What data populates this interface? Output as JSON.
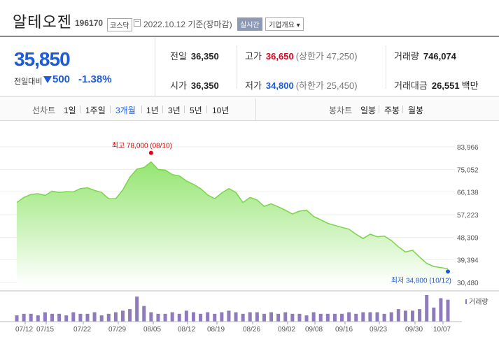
{
  "header": {
    "name": "알테오젠",
    "code": "196170",
    "market": "코스닥",
    "date": "2022.10.12  기준(장마감)",
    "realtime_label": "실시간",
    "company_label": "기업개요 ▾"
  },
  "summary": {
    "price": "35,850",
    "prev_label": "전일대비",
    "change": "500",
    "change_pct": "-1.38%",
    "prev_close_label": "전일",
    "prev_close": "36,350",
    "open_label": "시가",
    "open": "36,350",
    "high_label": "고가",
    "high": "36,650",
    "upper_limit": "(상한가 47,250)",
    "low_label": "저가",
    "low": "34,800",
    "lower_limit": "(하한가 25,450)",
    "volume_label": "거래량",
    "volume": "746,074",
    "amount_label": "거래대금",
    "amount": "26,551",
    "amount_unit": "백만"
  },
  "tabs": {
    "line_label": "선차트",
    "line": [
      "1일",
      "1주일",
      "3개월",
      "1년",
      "3년",
      "5년",
      "10년"
    ],
    "line_selected": 2,
    "candle_label": "봉차트",
    "candle": [
      "일봉",
      "주봉",
      "월봉"
    ]
  },
  "colors": {
    "up": "#e0001b",
    "down": "#1e5bd6",
    "line": "#7bd44a",
    "volume": "#8e7bbd"
  },
  "chart_data": {
    "type": "area",
    "yticks": [
      "83,966",
      "75,052",
      "66,138",
      "57,223",
      "48,309",
      "39,394",
      "30,480"
    ],
    "ylim": [
      30480,
      83966
    ],
    "xticks": [
      "07/12",
      "07/15",
      "07/22",
      "07/29",
      "08/05",
      "08/12",
      "08/19",
      "08/26",
      "09/02",
      "09/08",
      "09/16",
      "09/23",
      "09/30",
      "10/07"
    ],
    "high_annotation": "최고 78,000 (08/10)",
    "low_annotation": "최저 34,800 (10/12)",
    "volume_label": "거래량",
    "series": [
      {
        "values": [
          62000,
          64000,
          65200,
          65500,
          64800,
          66500,
          66000,
          66300,
          66200,
          67500,
          67800,
          66800,
          66000,
          63500,
          63500,
          67000,
          72000,
          75200,
          75800,
          78000,
          75000,
          74800,
          73000,
          72500,
          70500,
          69200,
          67500,
          65000,
          63500,
          65800,
          67500,
          66000,
          62000,
          64000,
          63000,
          60500,
          61500,
          60300,
          59000,
          57500,
          58600,
          59000,
          56500,
          55200,
          53800,
          53000,
          52200,
          51500,
          49500,
          47800,
          49500,
          48500,
          48800,
          47000,
          44500,
          42500,
          43200,
          40500,
          38000,
          36800,
          36350,
          35850
        ]
      },
      {
        "values": [
          4,
          5,
          5,
          4,
          6,
          5,
          5,
          4,
          6,
          5,
          5,
          6,
          4,
          5,
          6,
          7,
          8,
          16,
          10,
          6,
          5,
          5,
          6,
          5,
          7,
          6,
          5,
          6,
          5,
          6,
          7,
          6,
          5,
          6,
          6,
          5,
          6,
          5,
          6,
          5,
          5,
          4,
          6,
          5,
          5,
          5,
          5,
          6,
          5,
          6,
          6,
          6,
          5,
          6,
          8,
          7,
          7,
          8,
          17,
          9,
          15,
          14
        ]
      }
    ]
  }
}
